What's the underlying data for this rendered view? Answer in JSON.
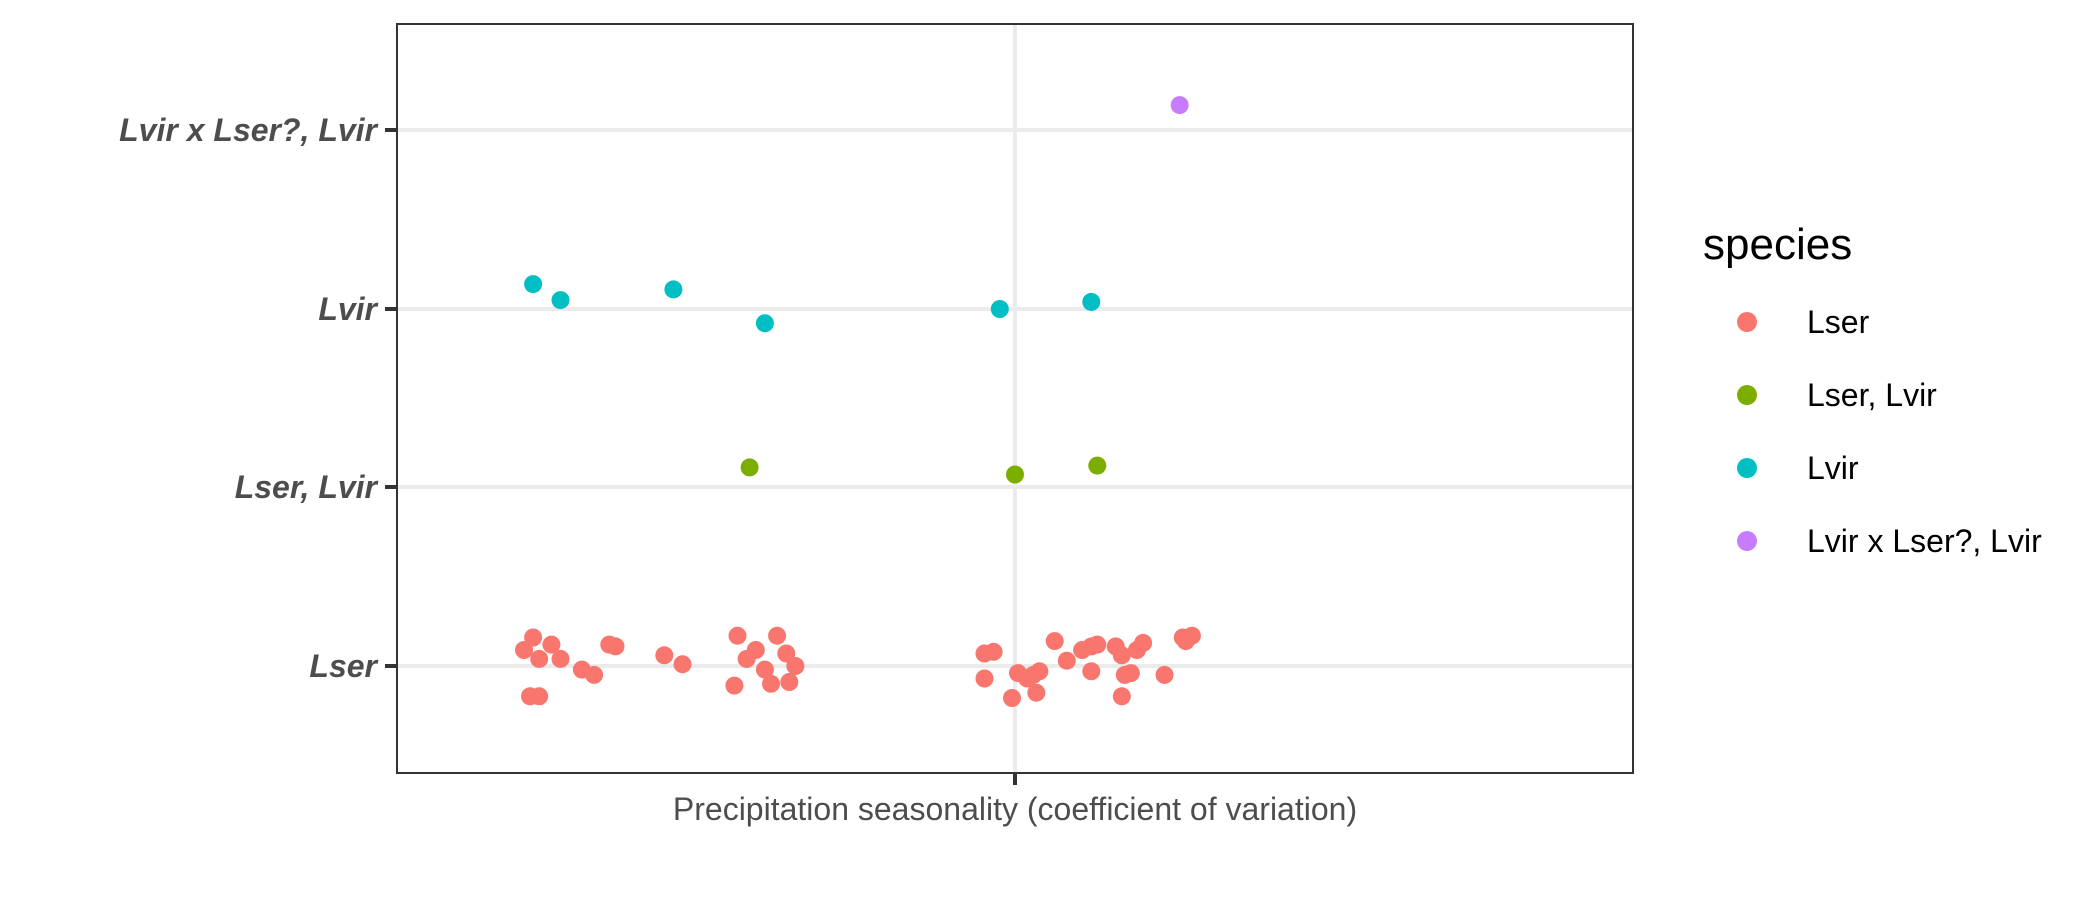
{
  "chart_data": {
    "type": "scatter",
    "title": "",
    "xlabel": "Precipitation seasonality (coefficient of variation)",
    "ylabel": "",
    "y_categories": [
      "Lser",
      "Lser, Lvir",
      "Lvir",
      "Lvir x Lser?, Lvir"
    ],
    "grid": true,
    "legend": {
      "title": "species",
      "placement": "right"
    },
    "colors": {
      "Lser": "#F8766D",
      "Lser, Lvir": "#7CAE00",
      "Lvir": "#00BFC4",
      "Lvir x Lser?, Lvir": "#C77CFF"
    },
    "series": [
      {
        "name": "Lser",
        "points": [
          [
            -0.805,
            0.09
          ],
          [
            -0.79,
            0.16
          ],
          [
            -0.795,
            -0.17
          ],
          [
            -0.78,
            0.04
          ],
          [
            -0.78,
            -0.17
          ],
          [
            -0.76,
            0.12
          ],
          [
            -0.745,
            0.04
          ],
          [
            -0.71,
            -0.02
          ],
          [
            -0.69,
            -0.05
          ],
          [
            -0.665,
            0.12
          ],
          [
            -0.655,
            0.11
          ],
          [
            -0.575,
            0.06
          ],
          [
            -0.545,
            0.01
          ],
          [
            -0.46,
            -0.11
          ],
          [
            -0.455,
            0.17
          ],
          [
            -0.44,
            0.04
          ],
          [
            -0.425,
            0.09
          ],
          [
            -0.41,
            -0.02
          ],
          [
            -0.4,
            -0.1
          ],
          [
            -0.39,
            0.17
          ],
          [
            -0.375,
            0.07
          ],
          [
            -0.37,
            -0.09
          ],
          [
            -0.36,
            0.0
          ],
          [
            -0.05,
            0.07
          ],
          [
            -0.05,
            -0.07
          ],
          [
            -0.035,
            0.08
          ],
          [
            -0.005,
            -0.18
          ],
          [
            0.005,
            -0.04
          ],
          [
            0.02,
            -0.07
          ],
          [
            0.03,
            -0.05
          ],
          [
            0.035,
            -0.15
          ],
          [
            0.04,
            -0.03
          ],
          [
            0.065,
            0.14
          ],
          [
            0.085,
            0.03
          ],
          [
            0.11,
            0.09
          ],
          [
            0.125,
            0.11
          ],
          [
            0.125,
            -0.03
          ],
          [
            0.135,
            0.12
          ],
          [
            0.165,
            0.11
          ],
          [
            0.175,
            0.06
          ],
          [
            0.175,
            -0.17
          ],
          [
            0.18,
            -0.05
          ],
          [
            0.19,
            -0.04
          ],
          [
            0.2,
            0.09
          ],
          [
            0.21,
            0.13
          ],
          [
            0.245,
            -0.05
          ],
          [
            0.275,
            0.16
          ],
          [
            0.28,
            0.14
          ],
          [
            0.29,
            0.17
          ]
        ]
      },
      {
        "name": "Lser, Lvir",
        "points": [
          [
            -0.435,
            0.11
          ],
          [
            0.0,
            0.07
          ],
          [
            0.135,
            0.12
          ]
        ]
      },
      {
        "name": "Lvir",
        "points": [
          [
            -0.79,
            0.14
          ],
          [
            -0.745,
            0.05
          ],
          [
            -0.56,
            0.11
          ],
          [
            -0.41,
            -0.08
          ],
          [
            -0.025,
            0.0
          ],
          [
            0.125,
            0.04
          ]
        ]
      },
      {
        "name": "Lvir x Lser?, Lvir",
        "points": [
          [
            0.27,
            0.14
          ]
        ]
      }
    ]
  }
}
